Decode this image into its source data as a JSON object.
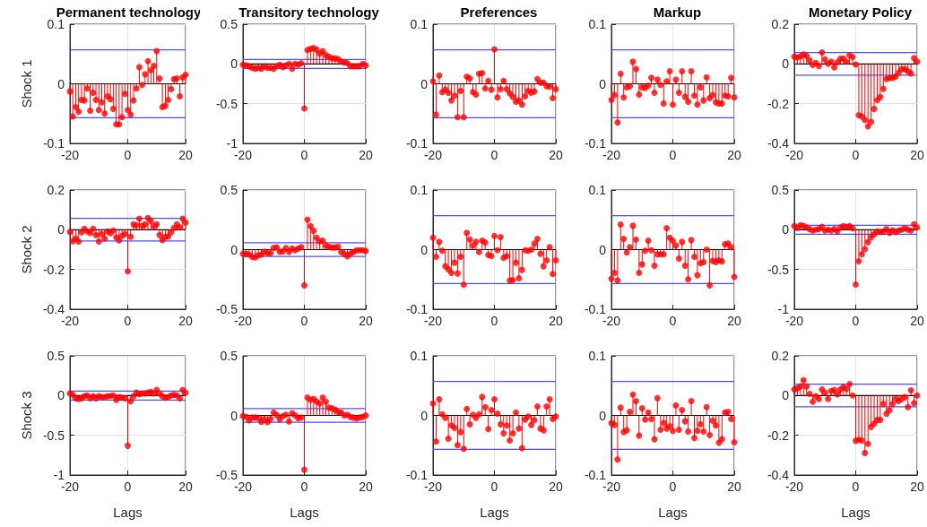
{
  "chart_data": [
    {
      "type": "lollipop",
      "title": "Permanent technology",
      "ylabel": "Shock 1",
      "color": "#ff0000",
      "marker": "circle",
      "grid": true,
      "xlim": [
        -20,
        20
      ],
      "xticks": [
        -20,
        0,
        20
      ],
      "ylim": [
        -0.1,
        0.1
      ],
      "yticks": [
        -0.1,
        0,
        0.1
      ],
      "ref_lines": [
        {
          "axis": "y",
          "value": 0,
          "color": "#000000"
        },
        {
          "axis": "y",
          "value": 0.057,
          "color": "#4d4dff"
        },
        {
          "axis": "y",
          "value": -0.057,
          "color": "#4d4dff"
        }
      ],
      "x": [
        -20,
        -19,
        -18,
        -17,
        -16,
        -15,
        -14,
        -13,
        -12,
        -11,
        -10,
        -9,
        -8,
        -7,
        -6,
        -5,
        -4,
        -3,
        -2,
        -1,
        0,
        1,
        2,
        3,
        4,
        5,
        6,
        7,
        8,
        9,
        10,
        11,
        12,
        13,
        14,
        15,
        16,
        17,
        18,
        19,
        20
      ],
      "values": [
        -0.013,
        -0.055,
        -0.039,
        -0.047,
        -0.027,
        -0.028,
        -0.008,
        -0.045,
        -0.015,
        -0.027,
        -0.044,
        -0.031,
        -0.05,
        -0.021,
        -0.026,
        -0.042,
        -0.068,
        -0.068,
        -0.056,
        -0.017,
        -0.044,
        -0.052,
        -0.028,
        -0.008,
        0.028,
        -0.002,
        0.016,
        0.038,
        0.023,
        0.03,
        0.055,
        0.009,
        -0.039,
        -0.037,
        -0.027,
        -0.009,
        0.008,
        0.009,
        -0.021,
        0.011,
        0.015
      ]
    },
    {
      "type": "lollipop",
      "title": "Transitory technology",
      "color": "#ff0000",
      "marker": "circle",
      "grid": true,
      "xlim": [
        -20,
        20
      ],
      "xticks": [
        -20,
        0,
        20
      ],
      "ylim": [
        -1,
        0.5
      ],
      "yticks": [
        -1,
        -0.5,
        0,
        0.5
      ],
      "ref_lines": [
        {
          "axis": "y",
          "value": 0,
          "color": "#000000"
        },
        {
          "axis": "y",
          "value": 0.057,
          "color": "#4d4dff"
        },
        {
          "axis": "y",
          "value": -0.057,
          "color": "#4d4dff"
        }
      ],
      "x": [
        -20,
        -19,
        -18,
        -17,
        -16,
        -15,
        -14,
        -13,
        -12,
        -11,
        -10,
        -9,
        -8,
        -7,
        -6,
        -5,
        -4,
        -3,
        -2,
        -1,
        0,
        1,
        2,
        3,
        4,
        5,
        6,
        7,
        8,
        9,
        10,
        11,
        12,
        13,
        14,
        15,
        16,
        17,
        18,
        19,
        20
      ],
      "values": [
        -0.01,
        -0.02,
        -0.03,
        -0.05,
        -0.06,
        -0.05,
        -0.06,
        -0.03,
        -0.05,
        -0.05,
        -0.06,
        -0.03,
        -0.01,
        -0.04,
        -0.02,
        0,
        -0.06,
        0,
        -0.01,
        0.01,
        -0.56,
        0.175,
        0.19,
        0.2,
        0.18,
        0.13,
        0.16,
        0.11,
        0.09,
        0.07,
        0.07,
        0.06,
        0.03,
        0.02,
        0.01,
        -0.03,
        -0.03,
        -0.03,
        -0.03,
        0,
        -0.02
      ]
    },
    {
      "type": "lollipop",
      "title": "Preferences",
      "color": "#ff0000",
      "marker": "circle",
      "grid": true,
      "xlim": [
        -20,
        20
      ],
      "xticks": [
        -20,
        0,
        20
      ],
      "ylim": [
        -0.1,
        0.1
      ],
      "yticks": [
        -0.1,
        0,
        0.1
      ],
      "ref_lines": [
        {
          "axis": "y",
          "value": 0,
          "color": "#000000"
        },
        {
          "axis": "y",
          "value": 0.057,
          "color": "#4d4dff"
        },
        {
          "axis": "y",
          "value": -0.057,
          "color": "#4d4dff"
        }
      ],
      "x": [
        -20,
        -19,
        -18,
        -17,
        -16,
        -15,
        -14,
        -13,
        -12,
        -11,
        -10,
        -9,
        -8,
        -7,
        -6,
        -5,
        -4,
        -3,
        -2,
        -1,
        0,
        1,
        2,
        3,
        4,
        5,
        6,
        7,
        8,
        9,
        10,
        11,
        12,
        13,
        14,
        15,
        16,
        17,
        18,
        19,
        20
      ],
      "values": [
        0.004,
        -0.052,
        0.014,
        -0.014,
        -0.01,
        -0.015,
        -0.028,
        -0.02,
        -0.056,
        -0.012,
        -0.056,
        0.012,
        0.009,
        -0.014,
        -0.018,
        0.017,
        0.018,
        -0.008,
        0.005,
        -0.01,
        0.058,
        -0.023,
        -0.009,
        0.005,
        -0.009,
        -0.016,
        -0.022,
        -0.03,
        -0.028,
        -0.035,
        -0.021,
        -0.012,
        -0.015,
        -0.013,
        0.008,
        0.002,
        0.002,
        -0.004,
        -0.005,
        -0.024,
        -0.009
      ]
    },
    {
      "type": "lollipop",
      "title": "Markup",
      "color": "#ff0000",
      "marker": "circle",
      "grid": true,
      "xlim": [
        -20,
        20
      ],
      "xticks": [
        -20,
        0,
        20
      ],
      "ylim": [
        -0.1,
        0.1
      ],
      "yticks": [
        -0.1,
        0,
        0.1
      ],
      "ref_lines": [
        {
          "axis": "y",
          "value": 0,
          "color": "#000000"
        },
        {
          "axis": "y",
          "value": 0.057,
          "color": "#4d4dff"
        },
        {
          "axis": "y",
          "value": -0.057,
          "color": "#4d4dff"
        }
      ],
      "x": [
        -20,
        -19,
        -18,
        -17,
        -16,
        -15,
        -14,
        -13,
        -12,
        -11,
        -10,
        -9,
        -8,
        -7,
        -6,
        -5,
        -4,
        -3,
        -2,
        -1,
        0,
        1,
        2,
        3,
        4,
        5,
        6,
        7,
        8,
        9,
        10,
        11,
        12,
        13,
        14,
        15,
        16,
        17,
        18,
        19,
        20
      ],
      "values": [
        -0.027,
        -0.019,
        -0.065,
        0.017,
        -0.023,
        -0.006,
        -0.004,
        0.037,
        0.025,
        -0.018,
        -0.006,
        -0.007,
        -0.003,
        0.01,
        -0.015,
        0.007,
        -0.002,
        -0.033,
        0.004,
        0.021,
        -0.035,
        0.007,
        -0.015,
        0.021,
        -0.022,
        -0.03,
        0.021,
        -0.02,
        -0.035,
        -0.006,
        -0.028,
        0.011,
        -0.024,
        -0.019,
        -0.031,
        -0.033,
        -0.033,
        -0.02,
        -0.021,
        0.01,
        -0.023
      ]
    },
    {
      "type": "lollipop",
      "title": "Monetary Policy",
      "color": "#ff0000",
      "marker": "circle",
      "grid": true,
      "xlim": [
        -20,
        20
      ],
      "xticks": [
        -20,
        0,
        20
      ],
      "ylim": [
        -0.4,
        0.2
      ],
      "yticks": [
        -0.4,
        -0.2,
        0,
        0.2
      ],
      "ref_lines": [
        {
          "axis": "y",
          "value": 0,
          "color": "#000000"
        },
        {
          "axis": "y",
          "value": 0.057,
          "color": "#4d4dff"
        },
        {
          "axis": "y",
          "value": -0.057,
          "color": "#4d4dff"
        }
      ],
      "x": [
        -20,
        -19,
        -18,
        -17,
        -16,
        -15,
        -14,
        -13,
        -12,
        -11,
        -10,
        -9,
        -8,
        -7,
        -6,
        -5,
        -4,
        -3,
        -2,
        -1,
        0,
        1,
        2,
        3,
        4,
        5,
        6,
        7,
        8,
        9,
        10,
        11,
        12,
        13,
        14,
        15,
        16,
        17,
        18,
        19,
        20
      ],
      "values": [
        0.036,
        0.033,
        0.038,
        0.048,
        0.041,
        0.018,
        -0.005,
        0.005,
        -0.011,
        0.058,
        0.023,
        0,
        0.011,
        -0.018,
        0.008,
        0.026,
        0.027,
        0.012,
        0.044,
        0.035,
        -0.003,
        -0.258,
        -0.265,
        -0.283,
        -0.314,
        -0.292,
        -0.227,
        -0.182,
        -0.167,
        -0.126,
        -0.076,
        -0.071,
        -0.071,
        -0.064,
        -0.045,
        -0.027,
        -0.027,
        -0.038,
        -0.048,
        0.03,
        0.011
      ]
    },
    {
      "type": "lollipop",
      "ylabel": "Shock 2",
      "color": "#ff0000",
      "marker": "circle",
      "grid": true,
      "xlim": [
        -20,
        20
      ],
      "xticks": [
        -20,
        0,
        20
      ],
      "ylim": [
        -0.4,
        0.2
      ],
      "yticks": [
        -0.4,
        -0.2,
        0,
        0.2
      ],
      "ref_lines": [
        {
          "axis": "y",
          "value": 0,
          "color": "#000000"
        },
        {
          "axis": "y",
          "value": 0.057,
          "color": "#4d4dff"
        },
        {
          "axis": "y",
          "value": -0.057,
          "color": "#4d4dff"
        }
      ],
      "x": [
        -20,
        -19,
        -18,
        -17,
        -16,
        -15,
        -14,
        -13,
        -12,
        -11,
        -10,
        -9,
        -8,
        -7,
        -6,
        -5,
        -4,
        -3,
        -2,
        -1,
        0,
        1,
        2,
        3,
        4,
        5,
        6,
        7,
        8,
        9,
        10,
        11,
        12,
        13,
        14,
        15,
        16,
        17,
        18,
        19,
        20
      ],
      "values": [
        -0.011,
        -0.058,
        -0.045,
        -0.059,
        -0.013,
        0.005,
        -0.009,
        -0.016,
        0.005,
        -0.027,
        -0.059,
        -0.022,
        -0.045,
        -0.009,
        -0.018,
        -0.004,
        -0.038,
        -0.054,
        -0.031,
        -0.022,
        -0.209,
        -0.036,
        0.027,
        0.023,
        0.056,
        0.02,
        0.027,
        0.059,
        0.045,
        0.018,
        0.027,
        -0.027,
        -0.052,
        -0.036,
        -0.034,
        -0.013,
        0.009,
        0.027,
        0.013,
        0.056,
        0.036
      ]
    },
    {
      "type": "lollipop",
      "color": "#ff0000",
      "marker": "circle",
      "grid": true,
      "xlim": [
        -20,
        20
      ],
      "xticks": [
        -20,
        0,
        20
      ],
      "ylim": [
        -0.5,
        0.5
      ],
      "yticks": [
        -0.5,
        0,
        0.5
      ],
      "ref_lines": [
        {
          "axis": "y",
          "value": 0,
          "color": "#000000"
        },
        {
          "axis": "y",
          "value": 0.057,
          "color": "#4d4dff"
        },
        {
          "axis": "y",
          "value": -0.057,
          "color": "#4d4dff"
        }
      ],
      "x": [
        -20,
        -19,
        -18,
        -17,
        -16,
        -15,
        -14,
        -13,
        -12,
        -11,
        -10,
        -9,
        -8,
        -7,
        -6,
        -5,
        -4,
        -3,
        -2,
        -1,
        0,
        1,
        2,
        3,
        4,
        5,
        6,
        7,
        8,
        9,
        10,
        11,
        12,
        13,
        14,
        15,
        16,
        17,
        18,
        19,
        20
      ],
      "values": [
        -0.036,
        -0.036,
        -0.042,
        -0.06,
        -0.066,
        -0.048,
        -0.042,
        -0.018,
        -0.03,
        -0.03,
        0.015,
        0.018,
        -0.018,
        -0.015,
        0.012,
        -0.018,
        0.009,
        -0.006,
        0.009,
        0.021,
        -0.3,
        0.252,
        0.198,
        0.159,
        0.099,
        0.069,
        0.075,
        0.036,
        0.024,
        0.018,
        0.018,
        0.024,
        -0.021,
        -0.036,
        -0.057,
        -0.036,
        -0.021,
        -0.006,
        -0.006,
        -0.006,
        -0.012
      ]
    },
    {
      "type": "lollipop",
      "color": "#ff0000",
      "marker": "circle",
      "grid": true,
      "xlim": [
        -20,
        20
      ],
      "xticks": [
        -20,
        0,
        20
      ],
      "ylim": [
        -0.1,
        0.1
      ],
      "yticks": [
        -0.1,
        0,
        0.1
      ],
      "ref_lines": [
        {
          "axis": "y",
          "value": 0,
          "color": "#000000"
        },
        {
          "axis": "y",
          "value": 0.057,
          "color": "#4d4dff"
        },
        {
          "axis": "y",
          "value": -0.057,
          "color": "#4d4dff"
        }
      ],
      "x": [
        -20,
        -19,
        -18,
        -17,
        -16,
        -15,
        -14,
        -13,
        -12,
        -11,
        -10,
        -9,
        -8,
        -7,
        -6,
        -5,
        -4,
        -3,
        -2,
        -1,
        0,
        1,
        2,
        3,
        4,
        5,
        6,
        7,
        8,
        9,
        10,
        11,
        12,
        13,
        14,
        15,
        16,
        17,
        18,
        19,
        20
      ],
      "values": [
        0.02,
        -0.012,
        0.013,
        -0.002,
        -0.028,
        -0.033,
        -0.039,
        -0.022,
        -0.04,
        -0.012,
        -0.059,
        0.028,
        0.017,
        0.007,
        0.013,
        -0.004,
        0.015,
        0.012,
        -0.009,
        -0.011,
        0.023,
        -0.001,
        0.021,
        -0.014,
        -0.011,
        -0.052,
        -0.051,
        -0.022,
        -0.048,
        -0.034,
        -0.001,
        -0.002,
        0,
        0.01,
        0.018,
        -0.007,
        -0.028,
        -0.018,
        0.004,
        -0.041,
        -0.018
      ]
    },
    {
      "type": "lollipop",
      "color": "#ff0000",
      "marker": "circle",
      "grid": true,
      "xlim": [
        -20,
        20
      ],
      "xticks": [
        -20,
        0,
        20
      ],
      "ylim": [
        -0.1,
        0.1
      ],
      "yticks": [
        -0.1,
        0,
        0.1
      ],
      "ref_lines": [
        {
          "axis": "y",
          "value": 0,
          "color": "#000000"
        },
        {
          "axis": "y",
          "value": 0.057,
          "color": "#4d4dff"
        },
        {
          "axis": "y",
          "value": -0.057,
          "color": "#4d4dff"
        }
      ],
      "x": [
        -20,
        -19,
        -18,
        -17,
        -16,
        -15,
        -14,
        -13,
        -12,
        -11,
        -10,
        -9,
        -8,
        -7,
        -6,
        -5,
        -4,
        -3,
        -2,
        -1,
        0,
        1,
        2,
        3,
        4,
        5,
        6,
        7,
        8,
        9,
        10,
        11,
        12,
        13,
        14,
        15,
        16,
        17,
        18,
        19,
        20
      ],
      "values": [
        -0.049,
        -0.039,
        -0.052,
        0.042,
        0.018,
        -0.005,
        0.004,
        0.04,
        0.017,
        -0.039,
        -0.025,
        -0.002,
        0.015,
        -0.001,
        -0.027,
        -0.008,
        -0.008,
        -0.008,
        0.036,
        0.02,
        0.015,
        0.007,
        -0.015,
        0.013,
        -0.027,
        -0.05,
        0.016,
        -0.012,
        -0.043,
        -0.023,
        -0.021,
        0,
        -0.06,
        -0.019,
        -0.021,
        -0.018,
        -0.02,
        0.009,
        0.01,
        0.004,
        -0.046
      ]
    },
    {
      "type": "lollipop",
      "color": "#ff0000",
      "marker": "circle",
      "grid": true,
      "xlim": [
        -20,
        20
      ],
      "xticks": [
        -20,
        0,
        20
      ],
      "ylim": [
        -1,
        0.5
      ],
      "yticks": [
        -1,
        -0.5,
        0,
        0.5
      ],
      "ref_lines": [
        {
          "axis": "y",
          "value": 0,
          "color": "#000000"
        },
        {
          "axis": "y",
          "value": 0.057,
          "color": "#4d4dff"
        },
        {
          "axis": "y",
          "value": -0.057,
          "color": "#4d4dff"
        }
      ],
      "x": [
        -20,
        -19,
        -18,
        -17,
        -16,
        -15,
        -14,
        -13,
        -12,
        -11,
        -10,
        -9,
        -8,
        -7,
        -6,
        -5,
        -4,
        -3,
        -2,
        -1,
        0,
        1,
        2,
        3,
        4,
        5,
        6,
        7,
        8,
        9,
        10,
        11,
        12,
        13,
        14,
        15,
        16,
        17,
        18,
        19,
        20
      ],
      "values": [
        0.045,
        0.023,
        0.057,
        0.049,
        0.03,
        0.008,
        -0.011,
        0,
        0.008,
        0.038,
        -0.011,
        0,
        -0.011,
        0.008,
        -0.019,
        0.03,
        0.045,
        0.038,
        0.045,
        0.019,
        -0.69,
        -0.396,
        -0.309,
        -0.245,
        -0.158,
        -0.094,
        -0.057,
        -0.023,
        -0.03,
        -0.023,
        0.008,
        -0.038,
        -0.008,
        -0.03,
        -0.011,
        0,
        0.019,
        0,
        -0.011,
        0.068,
        0.03
      ]
    },
    {
      "type": "lollipop",
      "ylabel": "Shock 3",
      "xlabel": "Lags",
      "color": "#ff0000",
      "marker": "circle",
      "grid": true,
      "xlim": [
        -20,
        20
      ],
      "xticks": [
        -20,
        0,
        20
      ],
      "ylim": [
        -1,
        0.5
      ],
      "yticks": [
        -1,
        -0.5,
        0,
        0.5
      ],
      "ref_lines": [
        {
          "axis": "y",
          "value": 0,
          "color": "#000000"
        },
        {
          "axis": "y",
          "value": 0.057,
          "color": "#4d4dff"
        },
        {
          "axis": "y",
          "value": -0.057,
          "color": "#4d4dff"
        }
      ],
      "x": [
        -20,
        -19,
        -18,
        -17,
        -16,
        -15,
        -14,
        -13,
        -12,
        -11,
        -10,
        -9,
        -8,
        -7,
        -6,
        -5,
        -4,
        -3,
        -2,
        -1,
        0,
        1,
        2,
        3,
        4,
        5,
        6,
        7,
        8,
        9,
        10,
        11,
        12,
        13,
        14,
        15,
        16,
        17,
        18,
        19,
        20
      ],
      "values": [
        0.027,
        0.009,
        -0.036,
        -0.045,
        -0.036,
        -0.009,
        0,
        -0.036,
        -0.009,
        -0.036,
        -0.009,
        -0.018,
        -0.018,
        -0.009,
        -0.004,
        0,
        -0.054,
        -0.018,
        -0.027,
        -0.036,
        -0.632,
        -0.072,
        -0.009,
        0.036,
        0.018,
        0.027,
        0.027,
        0.036,
        0.045,
        0.027,
        0.072,
        0.027,
        -0.009,
        -0.027,
        -0.018,
        0,
        0.009,
        0,
        -0.036,
        0.072,
        0.036
      ]
    },
    {
      "type": "lollipop",
      "xlabel": "Lags",
      "color": "#ff0000",
      "marker": "circle",
      "grid": true,
      "xlim": [
        -20,
        20
      ],
      "xticks": [
        -20,
        0,
        20
      ],
      "ylim": [
        -0.5,
        0.5
      ],
      "yticks": [
        -0.5,
        0,
        0.5
      ],
      "ref_lines": [
        {
          "axis": "y",
          "value": 0,
          "color": "#000000"
        },
        {
          "axis": "y",
          "value": 0.057,
          "color": "#4d4dff"
        },
        {
          "axis": "y",
          "value": -0.057,
          "color": "#4d4dff"
        }
      ],
      "x": [
        -20,
        -19,
        -18,
        -17,
        -16,
        -15,
        -14,
        -13,
        -12,
        -11,
        -10,
        -9,
        -8,
        -7,
        -6,
        -5,
        -4,
        -3,
        -2,
        -1,
        0,
        1,
        2,
        3,
        4,
        5,
        6,
        7,
        8,
        9,
        10,
        11,
        12,
        13,
        14,
        15,
        16,
        17,
        18,
        19,
        20
      ],
      "values": [
        -0.006,
        -0.012,
        -0.042,
        -0.018,
        -0.018,
        -0.024,
        -0.054,
        -0.03,
        -0.057,
        -0.03,
        0.024,
        0.003,
        -0.033,
        -0.006,
        0.006,
        -0.051,
        0.018,
        0,
        -0.024,
        -0.018,
        -0.456,
        0.15,
        0.132,
        0.138,
        0.117,
        0.102,
        0.15,
        0.114,
        0.066,
        0.06,
        0.048,
        0.03,
        0.024,
        0,
        0.006,
        -0.012,
        -0.018,
        -0.024,
        -0.018,
        -0.012,
        0
      ]
    },
    {
      "type": "lollipop",
      "xlabel": "Lags",
      "color": "#ff0000",
      "marker": "circle",
      "grid": true,
      "xlim": [
        -20,
        20
      ],
      "xticks": [
        -20,
        0,
        20
      ],
      "ylim": [
        -0.1,
        0.1
      ],
      "yticks": [
        -0.1,
        0,
        0.1
      ],
      "ref_lines": [
        {
          "axis": "y",
          "value": 0,
          "color": "#000000"
        },
        {
          "axis": "y",
          "value": 0.057,
          "color": "#4d4dff"
        },
        {
          "axis": "y",
          "value": -0.057,
          "color": "#4d4dff"
        }
      ],
      "x": [
        -20,
        -19,
        -18,
        -17,
        -16,
        -15,
        -14,
        -13,
        -12,
        -11,
        -10,
        -9,
        -8,
        -7,
        -6,
        -5,
        -4,
        -3,
        -2,
        -1,
        0,
        1,
        2,
        3,
        4,
        5,
        6,
        7,
        8,
        9,
        10,
        11,
        12,
        13,
        14,
        15,
        16,
        17,
        18,
        19,
        20
      ],
      "values": [
        0.02,
        -0.044,
        0.027,
        0.002,
        -0.004,
        -0.039,
        -0.017,
        -0.021,
        -0.05,
        -0.028,
        -0.056,
        0.011,
        -0.015,
        0.001,
        -0.004,
        0.002,
        0.031,
        0.014,
        -0.023,
        0.009,
        0.027,
        0.003,
        -0.015,
        -0.03,
        -0.017,
        -0.042,
        -0.03,
        0.005,
        -0.022,
        -0.055,
        -0.007,
        -0.002,
        -0.016,
        -0.008,
        0.015,
        -0.022,
        -0.025,
        0.015,
        0.027,
        -0.006,
        -0.002
      ]
    },
    {
      "type": "lollipop",
      "xlabel": "Lags",
      "color": "#ff0000",
      "marker": "circle",
      "grid": true,
      "xlim": [
        -20,
        20
      ],
      "xticks": [
        -20,
        0,
        20
      ],
      "ylim": [
        -0.1,
        0.1
      ],
      "yticks": [
        -0.1,
        0,
        0.1
      ],
      "ref_lines": [
        {
          "axis": "y",
          "value": 0,
          "color": "#000000"
        },
        {
          "axis": "y",
          "value": 0.057,
          "color": "#4d4dff"
        },
        {
          "axis": "y",
          "value": -0.057,
          "color": "#4d4dff"
        }
      ],
      "x": [
        -20,
        -19,
        -18,
        -17,
        -16,
        -15,
        -14,
        -13,
        -12,
        -11,
        -10,
        -9,
        -8,
        -7,
        -6,
        -5,
        -4,
        -3,
        -2,
        -1,
        0,
        1,
        2,
        3,
        4,
        5,
        6,
        7,
        8,
        9,
        10,
        11,
        12,
        13,
        14,
        15,
        16,
        17,
        18,
        19,
        20
      ],
      "values": [
        -0.013,
        -0.016,
        -0.074,
        0.013,
        -0.028,
        -0.025,
        0.006,
        0.035,
        0.024,
        -0.034,
        0.012,
        -0.007,
        0.005,
        -0.006,
        -0.04,
        0.029,
        -0.024,
        -0.013,
        -0.022,
        -0.018,
        -0.026,
        0.017,
        -0.024,
        0.009,
        -0.01,
        -0.027,
        0.024,
        -0.038,
        -0.026,
        -0.015,
        -0.027,
        0.014,
        -0.033,
        -0.009,
        -0.017,
        -0.046,
        -0.04,
        0.005,
        0.006,
        -0.006,
        -0.045
      ]
    },
    {
      "type": "lollipop",
      "xlabel": "Lags",
      "color": "#ff0000",
      "marker": "circle",
      "grid": true,
      "xlim": [
        -20,
        20
      ],
      "xticks": [
        -20,
        0,
        20
      ],
      "ylim": [
        -0.4,
        0.2
      ],
      "yticks": [
        -0.4,
        -0.2,
        0,
        0.2
      ],
      "ref_lines": [
        {
          "axis": "y",
          "value": 0,
          "color": "#000000"
        },
        {
          "axis": "y",
          "value": 0.057,
          "color": "#4d4dff"
        },
        {
          "axis": "y",
          "value": -0.057,
          "color": "#4d4dff"
        }
      ],
      "x": [
        -20,
        -19,
        -18,
        -17,
        -16,
        -15,
        -14,
        -13,
        -12,
        -11,
        -10,
        -9,
        -8,
        -7,
        -6,
        -5,
        -4,
        -3,
        -2,
        -1,
        0,
        1,
        2,
        3,
        4,
        5,
        6,
        7,
        8,
        9,
        10,
        11,
        12,
        13,
        14,
        15,
        16,
        17,
        18,
        19,
        20
      ],
      "values": [
        0.031,
        0.037,
        0.046,
        0.077,
        0.046,
        0.008,
        -0.031,
        -0.003,
        -0.018,
        0.031,
        0.015,
        -0.018,
        0.023,
        0.028,
        0.006,
        0.031,
        0.043,
        0.034,
        0.058,
        0,
        -0.228,
        -0.223,
        -0.226,
        -0.289,
        -0.243,
        -0.158,
        -0.142,
        -0.123,
        -0.123,
        -0.042,
        -0.092,
        -0.074,
        -0.043,
        -0.018,
        -0.028,
        -0.018,
        -0.008,
        -0.058,
        0.026,
        -0.038,
        0
      ]
    }
  ]
}
